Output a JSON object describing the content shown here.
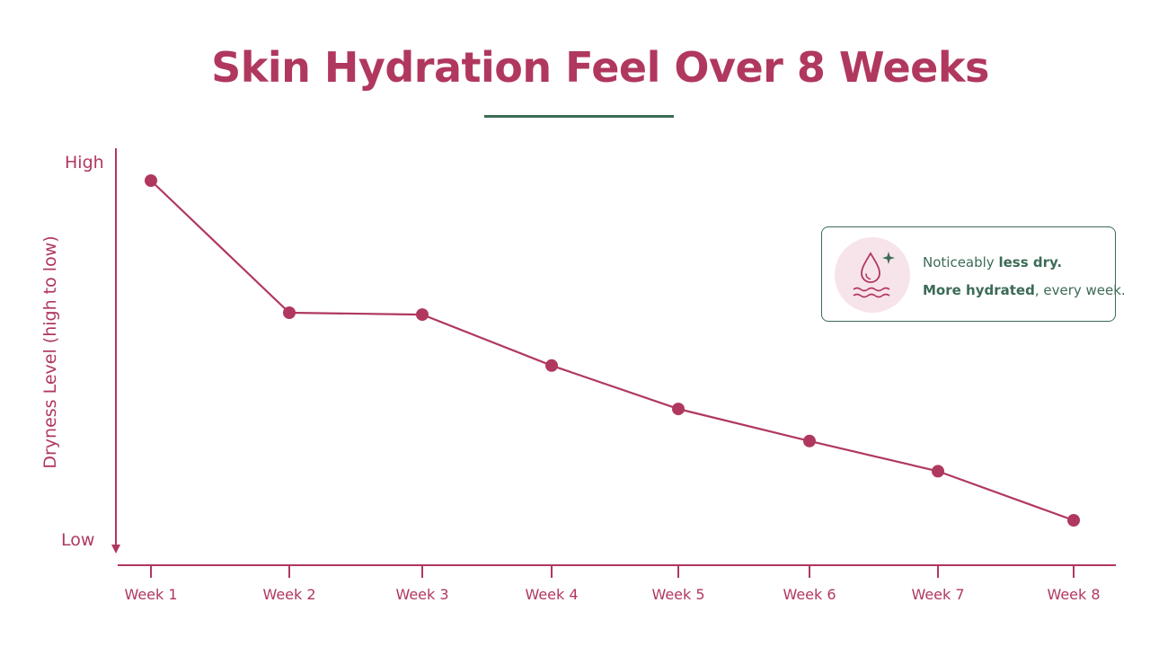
{
  "chart_data": {
    "type": "line",
    "title": "Skin Hydration Feel Over 8 Weeks",
    "ylabel": "Dryness Level (high to low)",
    "y_tick_labels": {
      "top": "High",
      "bottom": "Low"
    },
    "ylim": [
      0,
      100
    ],
    "categories": [
      "Week 1",
      "Week 2",
      "Week 3",
      "Week 4",
      "Week 5",
      "Week 6",
      "Week 7",
      "Week 8"
    ],
    "values": [
      95,
      60,
      59.5,
      46,
      34.5,
      26,
      18,
      5
    ],
    "grid": false,
    "colors": {
      "line": "#b0385e",
      "axis": "#b0385e",
      "accent": "#3c6b55"
    }
  },
  "callout": {
    "line1_prefix": "Noticeably ",
    "line1_emphasis": "less dry.",
    "line2_emphasis": "More hydrated",
    "line2_suffix": ", every week.",
    "icon": "water-drop-icon"
  }
}
